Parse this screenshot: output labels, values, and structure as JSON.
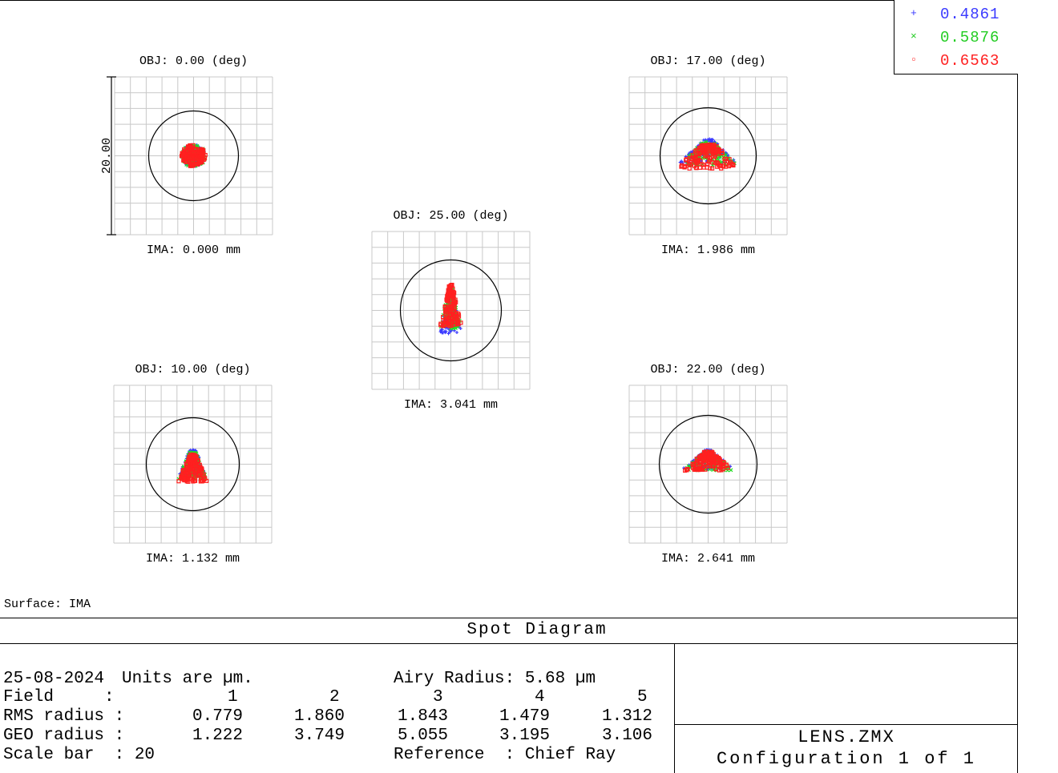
{
  "chart_data": {
    "type": "scatter",
    "title": "Spot Diagram",
    "surface_label": "Surface: IMA",
    "scale_bar_label": "20.00",
    "wavelengths": [
      {
        "label": "0.4861",
        "color": "#3a3aff",
        "symbol": "+"
      },
      {
        "label": "0.5876",
        "color": "#22dd22",
        "symbol": "×"
      },
      {
        "label": "0.6563",
        "color": "#ff2020",
        "symbol": "▫"
      }
    ],
    "fields": [
      {
        "obj": "OBJ: 0.00 (deg)",
        "ima": "IMA: 0.000 mm",
        "shape": "round"
      },
      {
        "obj": "OBJ: 10.00 (deg)",
        "ima": "IMA: 1.132 mm",
        "shape": "drop"
      },
      {
        "obj": "OBJ: 17.00 (deg)",
        "ima": "IMA: 1.986 mm",
        "shape": "crown"
      },
      {
        "obj": "OBJ: 22.00 (deg)",
        "ima": "IMA: 2.641 mm",
        "shape": "fan"
      },
      {
        "obj": "OBJ: 25.00 (deg)",
        "ima": "IMA: 3.041 mm",
        "shape": "spike"
      }
    ]
  },
  "info": {
    "date": "25-08-2024",
    "units": "Units are µm.",
    "airy": "Airy Radius: 5.68 µm",
    "field_label": "Field     :",
    "rms_label": "RMS radius :",
    "geo_label": "GEO radius :",
    "scale_label": "Scale bar  : 20",
    "reference": "Reference  : Chief Ray",
    "field_numbers": [
      "1",
      "2",
      "3",
      "4",
      "5"
    ],
    "rms": [
      "0.779",
      "1.860",
      "1.843",
      "1.479",
      "1.312"
    ],
    "geo": [
      "1.222",
      "3.749",
      "5.055",
      "3.195",
      "3.106"
    ]
  },
  "lens_file": "LENS.ZMX",
  "configuration": "Configuration 1 of 1"
}
